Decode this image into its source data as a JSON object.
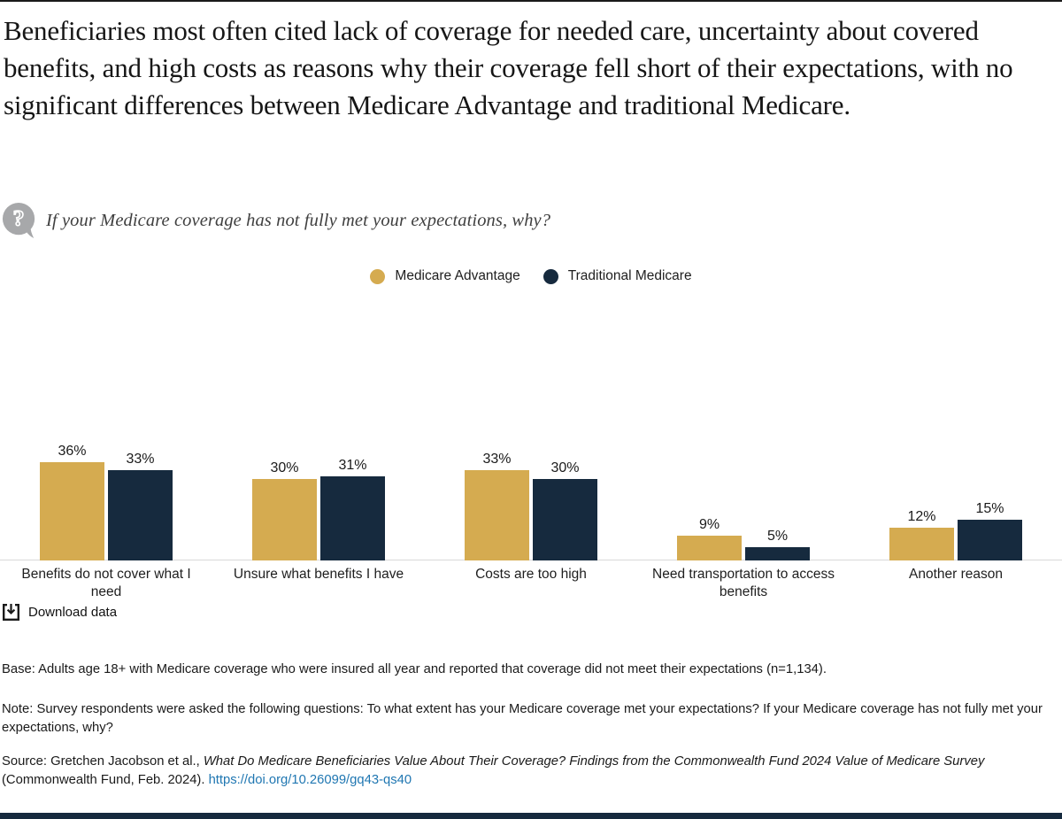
{
  "question": {
    "icon": "question-bubble-icon",
    "text": "If your Medicare coverage has not fully met your expectations, why?"
  },
  "legend": [
    {
      "label": "Medicare Advantage",
      "color": "#d5ab50"
    },
    {
      "label": "Traditional Medicare",
      "color": "#162a3e"
    }
  ],
  "chart_data": {
    "type": "bar",
    "title": "Beneficiaries most often cited lack of coverage for needed care, uncertainty about covered benefits, and high costs as reasons why their coverage fell short of their expectations, with no significant differences between Medicare Advantage and traditional Medicare.",
    "categories": [
      "Benefits do not cover what I need",
      "Unsure what benefits I have",
      "Costs are too high",
      "Need transportation to access benefits",
      "Another reason"
    ],
    "series": [
      {
        "name": "Medicare Advantage",
        "color": "#d5ab50",
        "values": [
          36,
          30,
          33,
          9,
          12
        ]
      },
      {
        "name": "Traditional Medicare",
        "color": "#162a3e",
        "values": [
          33,
          31,
          30,
          5,
          15
        ]
      }
    ],
    "value_suffix": "%",
    "ylim": [
      0,
      40
    ],
    "grid": false,
    "legend_position": "top-center",
    "axis_line_color": "#d9d9d9"
  },
  "download": {
    "label": "Download data"
  },
  "footer": {
    "base": "Base: Adults age 18+ with Medicare coverage who were insured all year and reported that coverage did not meet their expectations (n=1,134).",
    "note": "Note: Survey respondents were asked the following questions: To what extent has your Medicare coverage met your expectations? If your Medicare coverage has not fully met your expectations, why?",
    "source_prefix": "Source: Gretchen Jacobson et al., ",
    "source_italic": "What Do Medicare Beneficiaries Value About Their Coverage? Findings from the Commonwealth Fund 2024 Value of Medicare Survey",
    "source_suffix": " (Commonwealth Fund, Feb. 2024). ",
    "source_link": "https://doi.org/10.26099/gq43-qs40"
  }
}
